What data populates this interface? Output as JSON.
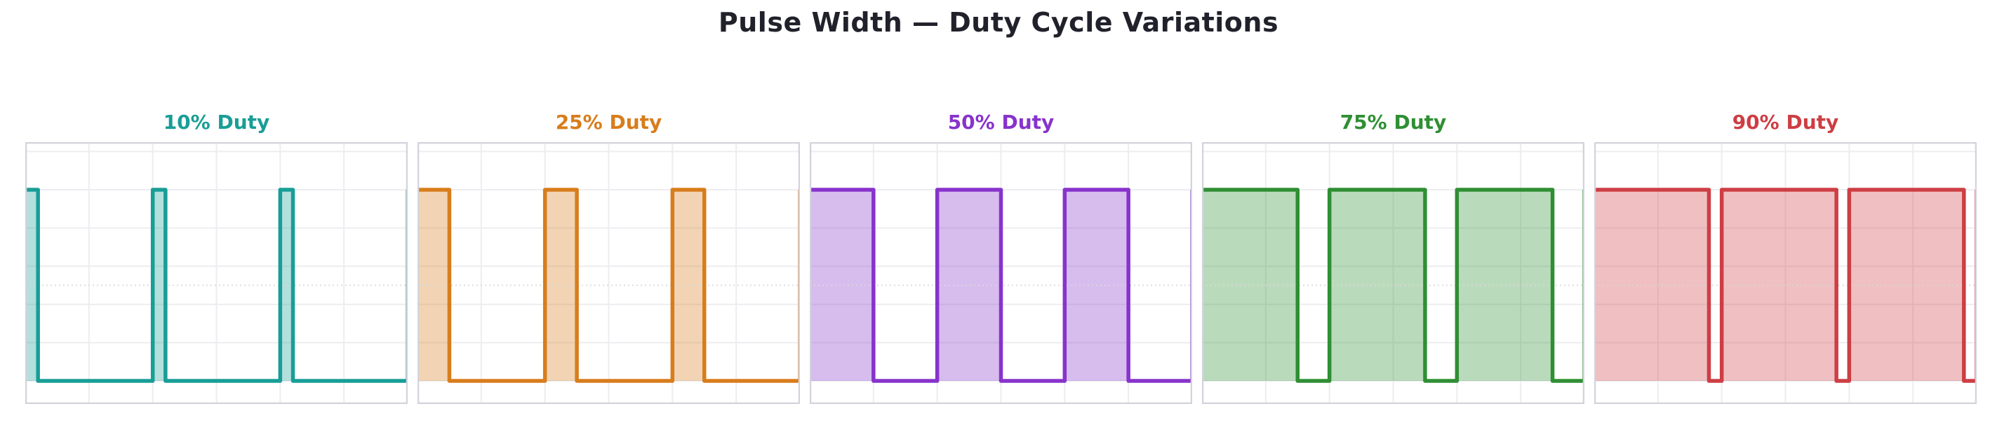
{
  "chart_data": {
    "type": "line",
    "title": "Pulse Width — Duty Cycle Variations",
    "title_color": "#21212b",
    "x": {
      "label": "",
      "range_periods": [
        0,
        3
      ],
      "cycles_shown": 3,
      "gridline_step_periods": 0.5
    },
    "y": {
      "label": "",
      "low_level": 0,
      "high_level": 1,
      "range": [
        -0.13,
        1.25
      ],
      "gridline_step": 0.2,
      "reference_level": 0.5
    },
    "style": {
      "background": "#ffffff",
      "grid_on": true,
      "grid_color": "#ededf1",
      "plot_border_color": "#d3d3dc",
      "reference_line_color": "#d9d9d9"
    },
    "subplots": [
      {
        "title": "10% Duty",
        "duty_cycle_percent": 10,
        "line_color": "#189E96",
        "fill_color": "rgba(24,158,150,0.33)"
      },
      {
        "title": "25% Duty",
        "duty_cycle_percent": 25,
        "line_color": "#D87D1C",
        "fill_color": "rgba(216,125,28,0.33)"
      },
      {
        "title": "50% Duty",
        "duty_cycle_percent": 50,
        "line_color": "#8733CC",
        "fill_color": "rgba(135,51,204,0.33)"
      },
      {
        "title": "75% Duty",
        "duty_cycle_percent": 75,
        "line_color": "#2F8F33",
        "fill_color": "rgba(47,143,51,0.33)"
      },
      {
        "title": "90% Duty",
        "duty_cycle_percent": 90,
        "line_color": "#CD3E44",
        "fill_color": "rgba(205,62,68,0.33)"
      }
    ]
  }
}
